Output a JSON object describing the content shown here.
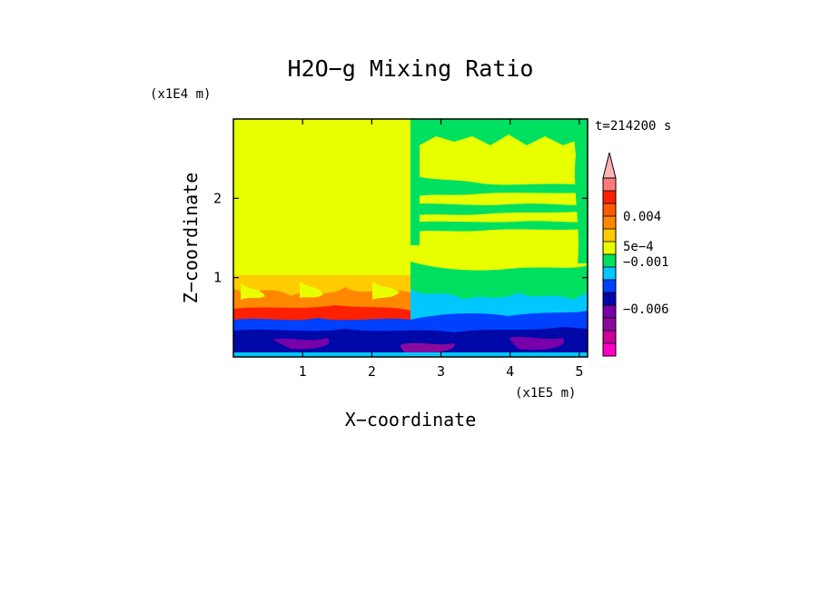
{
  "chart_data": {
    "type": "heatmap",
    "title": "H2O−g Mixing Ratio",
    "xlabel": "X−coordinate",
    "ylabel": "Z−coordinate",
    "x_unit": "(x1E5 m)",
    "y_unit": "(x1E4 m)",
    "time_label": "t=214200 s",
    "xlim": [
      0,
      5.12
    ],
    "ylim": [
      0,
      3.0
    ],
    "x_ticks": [
      1,
      2,
      3,
      4,
      5
    ],
    "y_ticks": [
      1,
      2
    ],
    "x_tick_labels": [
      "1",
      "2",
      "3",
      "4",
      "5"
    ],
    "y_tick_labels": [
      "1",
      "2"
    ],
    "colorbar": {
      "colors": [
        "#ff00c8",
        "#cc0099",
        "#8a0a9e",
        "#7700aa",
        "#0008a8",
        "#0040ff",
        "#00c8ff",
        "#00e060",
        "#e8ff00",
        "#ffcc00",
        "#ff8800",
        "#ff5a00",
        "#ff2000",
        "#ff7a7a"
      ],
      "labels": [
        "0.004",
        "5e−4",
        "−0.001",
        "−0.006"
      ],
      "extend_top": true
    }
  }
}
